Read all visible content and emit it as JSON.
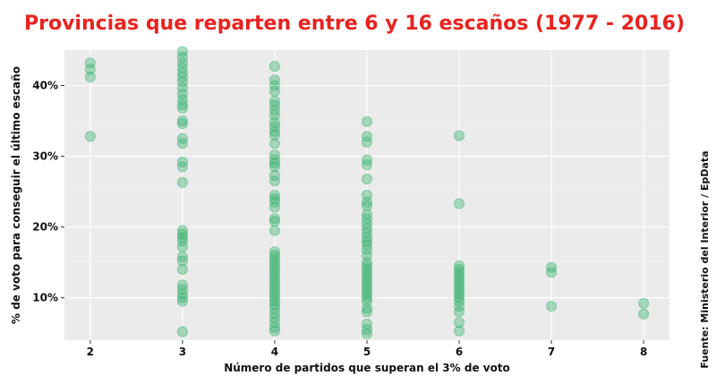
{
  "chart_data": {
    "type": "scatter",
    "title": "Provincias que reparten entre 6 y 16 escaños (1977 - 2016)",
    "xlabel": "Número de partidos que superan el 3% de voto",
    "ylabel": "% de voto para conseguir el último escaño",
    "source": "Fuente: Ministerio del Interior / EpData",
    "x_ticks": [
      2,
      3,
      4,
      5,
      6,
      7,
      8
    ],
    "y_ticks": [
      10,
      20,
      30,
      40
    ],
    "y_tick_labels": [
      "10%",
      "20%",
      "30%",
      "40%"
    ],
    "xlim": [
      1.72,
      8.28
    ],
    "ylim": [
      4,
      45
    ],
    "grid": true,
    "point_color": "#3cb371",
    "panel_background": "#ebebeb",
    "title_color": "#e8231f",
    "points": [
      {
        "x": 2,
        "y": 43.2
      },
      {
        "x": 2,
        "y": 42.3
      },
      {
        "x": 2,
        "y": 41.2
      },
      {
        "x": 2,
        "y": 32.8
      },
      {
        "x": 3,
        "y": 44.8
      },
      {
        "x": 3,
        "y": 44.0
      },
      {
        "x": 3,
        "y": 43.2
      },
      {
        "x": 3,
        "y": 42.5
      },
      {
        "x": 3,
        "y": 41.8
      },
      {
        "x": 3,
        "y": 41.2
      },
      {
        "x": 3,
        "y": 40.5
      },
      {
        "x": 3,
        "y": 39.7
      },
      {
        "x": 3,
        "y": 38.8
      },
      {
        "x": 3,
        "y": 38.0
      },
      {
        "x": 3,
        "y": 37.3
      },
      {
        "x": 3,
        "y": 36.8
      },
      {
        "x": 3,
        "y": 35.0
      },
      {
        "x": 3,
        "y": 34.6
      },
      {
        "x": 3,
        "y": 32.5
      },
      {
        "x": 3,
        "y": 31.8
      },
      {
        "x": 3,
        "y": 29.2
      },
      {
        "x": 3,
        "y": 28.5
      },
      {
        "x": 3,
        "y": 26.3
      },
      {
        "x": 3,
        "y": 19.5
      },
      {
        "x": 3,
        "y": 19.0
      },
      {
        "x": 3,
        "y": 18.5
      },
      {
        "x": 3,
        "y": 18.0
      },
      {
        "x": 3,
        "y": 17.2
      },
      {
        "x": 3,
        "y": 15.8
      },
      {
        "x": 3,
        "y": 15.2
      },
      {
        "x": 3,
        "y": 14.0
      },
      {
        "x": 3,
        "y": 11.8
      },
      {
        "x": 3,
        "y": 11.2
      },
      {
        "x": 3,
        "y": 10.5
      },
      {
        "x": 3,
        "y": 10.0
      },
      {
        "x": 3,
        "y": 9.5
      },
      {
        "x": 3,
        "y": 5.2
      },
      {
        "x": 4,
        "y": 42.7
      },
      {
        "x": 4,
        "y": 40.8
      },
      {
        "x": 4,
        "y": 40.0
      },
      {
        "x": 4,
        "y": 39.2
      },
      {
        "x": 4,
        "y": 37.8
      },
      {
        "x": 4,
        "y": 37.2
      },
      {
        "x": 4,
        "y": 36.5
      },
      {
        "x": 4,
        "y": 35.8
      },
      {
        "x": 4,
        "y": 34.8
      },
      {
        "x": 4,
        "y": 34.2
      },
      {
        "x": 4,
        "y": 33.5
      },
      {
        "x": 4,
        "y": 33.0
      },
      {
        "x": 4,
        "y": 31.8
      },
      {
        "x": 4,
        "y": 30.2
      },
      {
        "x": 4,
        "y": 29.5
      },
      {
        "x": 4,
        "y": 29.0
      },
      {
        "x": 4,
        "y": 28.5
      },
      {
        "x": 4,
        "y": 27.3
      },
      {
        "x": 4,
        "y": 26.5
      },
      {
        "x": 4,
        "y": 24.5
      },
      {
        "x": 4,
        "y": 24.0
      },
      {
        "x": 4,
        "y": 23.5
      },
      {
        "x": 4,
        "y": 22.8
      },
      {
        "x": 4,
        "y": 21.2
      },
      {
        "x": 4,
        "y": 20.8
      },
      {
        "x": 4,
        "y": 19.5
      },
      {
        "x": 4,
        "y": 16.5
      },
      {
        "x": 4,
        "y": 16.0
      },
      {
        "x": 4,
        "y": 15.5
      },
      {
        "x": 4,
        "y": 15.0
      },
      {
        "x": 4,
        "y": 14.5
      },
      {
        "x": 4,
        "y": 14.0
      },
      {
        "x": 4,
        "y": 13.5
      },
      {
        "x": 4,
        "y": 13.0
      },
      {
        "x": 4,
        "y": 12.5
      },
      {
        "x": 4,
        "y": 12.0
      },
      {
        "x": 4,
        "y": 11.5
      },
      {
        "x": 4,
        "y": 11.0
      },
      {
        "x": 4,
        "y": 10.5
      },
      {
        "x": 4,
        "y": 10.0
      },
      {
        "x": 4,
        "y": 9.5
      },
      {
        "x": 4,
        "y": 9.0
      },
      {
        "x": 4,
        "y": 8.5
      },
      {
        "x": 4,
        "y": 7.8
      },
      {
        "x": 4,
        "y": 7.2
      },
      {
        "x": 4,
        "y": 6.5
      },
      {
        "x": 4,
        "y": 5.8
      },
      {
        "x": 4,
        "y": 5.3
      },
      {
        "x": 5,
        "y": 34.9
      },
      {
        "x": 5,
        "y": 32.8
      },
      {
        "x": 5,
        "y": 32.0
      },
      {
        "x": 5,
        "y": 29.5
      },
      {
        "x": 5,
        "y": 28.8
      },
      {
        "x": 5,
        "y": 26.8
      },
      {
        "x": 5,
        "y": 24.5
      },
      {
        "x": 5,
        "y": 23.5
      },
      {
        "x": 5,
        "y": 23.0
      },
      {
        "x": 5,
        "y": 21.8
      },
      {
        "x": 5,
        "y": 21.2
      },
      {
        "x": 5,
        "y": 20.5
      },
      {
        "x": 5,
        "y": 19.8
      },
      {
        "x": 5,
        "y": 19.2
      },
      {
        "x": 5,
        "y": 18.5
      },
      {
        "x": 5,
        "y": 18.0
      },
      {
        "x": 5,
        "y": 17.5
      },
      {
        "x": 5,
        "y": 16.8
      },
      {
        "x": 5,
        "y": 16.0
      },
      {
        "x": 5,
        "y": 15.0
      },
      {
        "x": 5,
        "y": 14.5
      },
      {
        "x": 5,
        "y": 14.0
      },
      {
        "x": 5,
        "y": 13.5
      },
      {
        "x": 5,
        "y": 13.0
      },
      {
        "x": 5,
        "y": 12.5
      },
      {
        "x": 5,
        "y": 12.0
      },
      {
        "x": 5,
        "y": 11.5
      },
      {
        "x": 5,
        "y": 11.0
      },
      {
        "x": 5,
        "y": 10.5
      },
      {
        "x": 5,
        "y": 10.0
      },
      {
        "x": 5,
        "y": 9.5
      },
      {
        "x": 5,
        "y": 8.5
      },
      {
        "x": 5,
        "y": 8.0
      },
      {
        "x": 5,
        "y": 6.3
      },
      {
        "x": 5,
        "y": 5.5
      },
      {
        "x": 5,
        "y": 4.9
      },
      {
        "x": 6,
        "y": 32.9
      },
      {
        "x": 6,
        "y": 23.3
      },
      {
        "x": 6,
        "y": 14.5
      },
      {
        "x": 6,
        "y": 14.0
      },
      {
        "x": 6,
        "y": 13.5
      },
      {
        "x": 6,
        "y": 13.0
      },
      {
        "x": 6,
        "y": 12.5
      },
      {
        "x": 6,
        "y": 12.0
      },
      {
        "x": 6,
        "y": 11.5
      },
      {
        "x": 6,
        "y": 11.0
      },
      {
        "x": 6,
        "y": 10.5
      },
      {
        "x": 6,
        "y": 10.0
      },
      {
        "x": 6,
        "y": 9.5
      },
      {
        "x": 6,
        "y": 8.8
      },
      {
        "x": 6,
        "y": 8.0
      },
      {
        "x": 6,
        "y": 6.5
      },
      {
        "x": 6,
        "y": 5.3
      },
      {
        "x": 7,
        "y": 14.3
      },
      {
        "x": 7,
        "y": 13.6
      },
      {
        "x": 7,
        "y": 8.8
      },
      {
        "x": 8,
        "y": 9.2
      },
      {
        "x": 8,
        "y": 7.7
      }
    ]
  }
}
